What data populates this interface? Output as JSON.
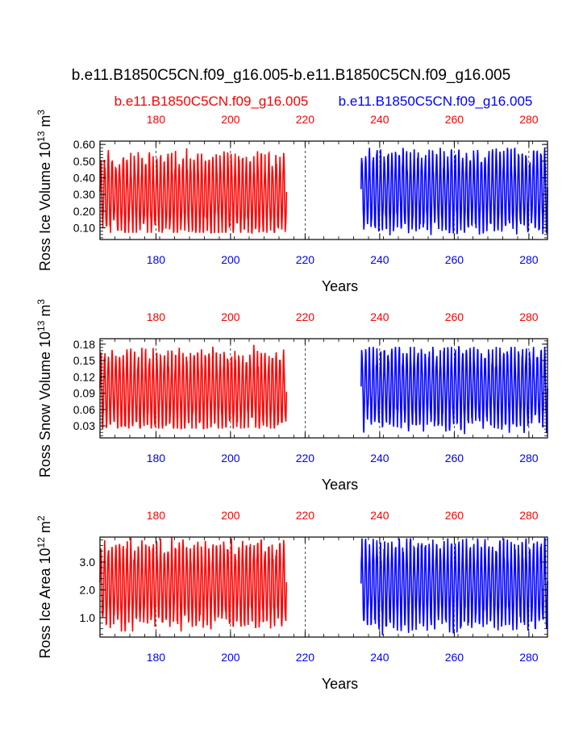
{
  "title": "b.e11.B1850C5CN.f09_g16.005-b.e11.B1850C5CN.f09_g16.005",
  "subtitle_left": "b.e11.B1850C5CN.f09_g16.005",
  "subtitle_right": "b.e11.B1850C5CN.f09_g16.005",
  "colors": {
    "case1": "#ff0000",
    "case2": "#0000ff",
    "axis": "#000000",
    "grid": "#000000"
  },
  "chart_data": [
    {
      "type": "line",
      "ylabel_main": "Ross Ice Volume 10",
      "ylabel_exp": "13",
      "ylabel_unit": " m",
      "ylabel_unit_exp": "3",
      "xlabel": "Years",
      "xlim": [
        165,
        285
      ],
      "ylim": [
        0.03,
        0.62
      ],
      "yticks": [
        "0.10",
        "0.20",
        "0.30",
        "0.40",
        "0.50",
        "0.60"
      ],
      "xticks": [
        "180",
        "200",
        "220",
        "240",
        "260",
        "280"
      ],
      "grid_x": [
        180,
        200,
        220,
        240,
        260,
        280
      ],
      "series": [
        {
          "name": "b.e11.B1850C5CN.f09_g16.005",
          "color": "red",
          "years": [
            165,
            215
          ],
          "min": 0.07,
          "max": 0.6,
          "mean": 0.3
        },
        {
          "name": "b.e11.B1850C5CN.f09_g16.005",
          "color": "blue",
          "years": [
            235,
            285
          ],
          "min": 0.03,
          "max": 0.58,
          "mean": 0.32
        }
      ]
    },
    {
      "type": "line",
      "ylabel_main": "Ross Snow Volume 10",
      "ylabel_exp": "13",
      "ylabel_unit": " m",
      "ylabel_unit_exp": "3",
      "xlabel": "Years",
      "xlim": [
        165,
        285
      ],
      "ylim": [
        0.008,
        0.19
      ],
      "yticks": [
        "0.03",
        "0.06",
        "0.09",
        "0.12",
        "0.15",
        "0.18"
      ],
      "xticks": [
        "180",
        "200",
        "220",
        "240",
        "260",
        "280"
      ],
      "grid_x": [
        180,
        200,
        220,
        240,
        260,
        280
      ],
      "series": [
        {
          "name": "b.e11.B1850C5CN.f09_g16.005",
          "color": "red",
          "years": [
            165,
            215
          ],
          "min": 0.025,
          "max": 0.185,
          "mean": 0.095
        },
        {
          "name": "b.e11.B1850C5CN.f09_g16.005",
          "color": "blue",
          "years": [
            235,
            285
          ],
          "min": 0.008,
          "max": 0.175,
          "mean": 0.1
        }
      ]
    },
    {
      "type": "line",
      "ylabel_main": "Ross Ice Area 10",
      "ylabel_exp": "12",
      "ylabel_unit": " m",
      "ylabel_unit_exp": "2",
      "xlabel": "Years",
      "xlim": [
        165,
        285
      ],
      "ylim": [
        0.3,
        3.9
      ],
      "yticks": [
        "1.0",
        "2.0",
        "3.0"
      ],
      "xticks": [
        "180",
        "200",
        "220",
        "240",
        "260",
        "280"
      ],
      "grid_x": [
        180,
        200,
        220,
        240,
        260,
        280
      ],
      "series": [
        {
          "name": "b.e11.B1850C5CN.f09_g16.005",
          "color": "red",
          "years": [
            165,
            215
          ],
          "min": 0.5,
          "max": 3.9,
          "mean": 2.2
        },
        {
          "name": "b.e11.B1850C5CN.f09_g16.005",
          "color": "blue",
          "years": [
            235,
            285
          ],
          "min": 0.35,
          "max": 3.85,
          "mean": 2.2
        }
      ]
    }
  ]
}
